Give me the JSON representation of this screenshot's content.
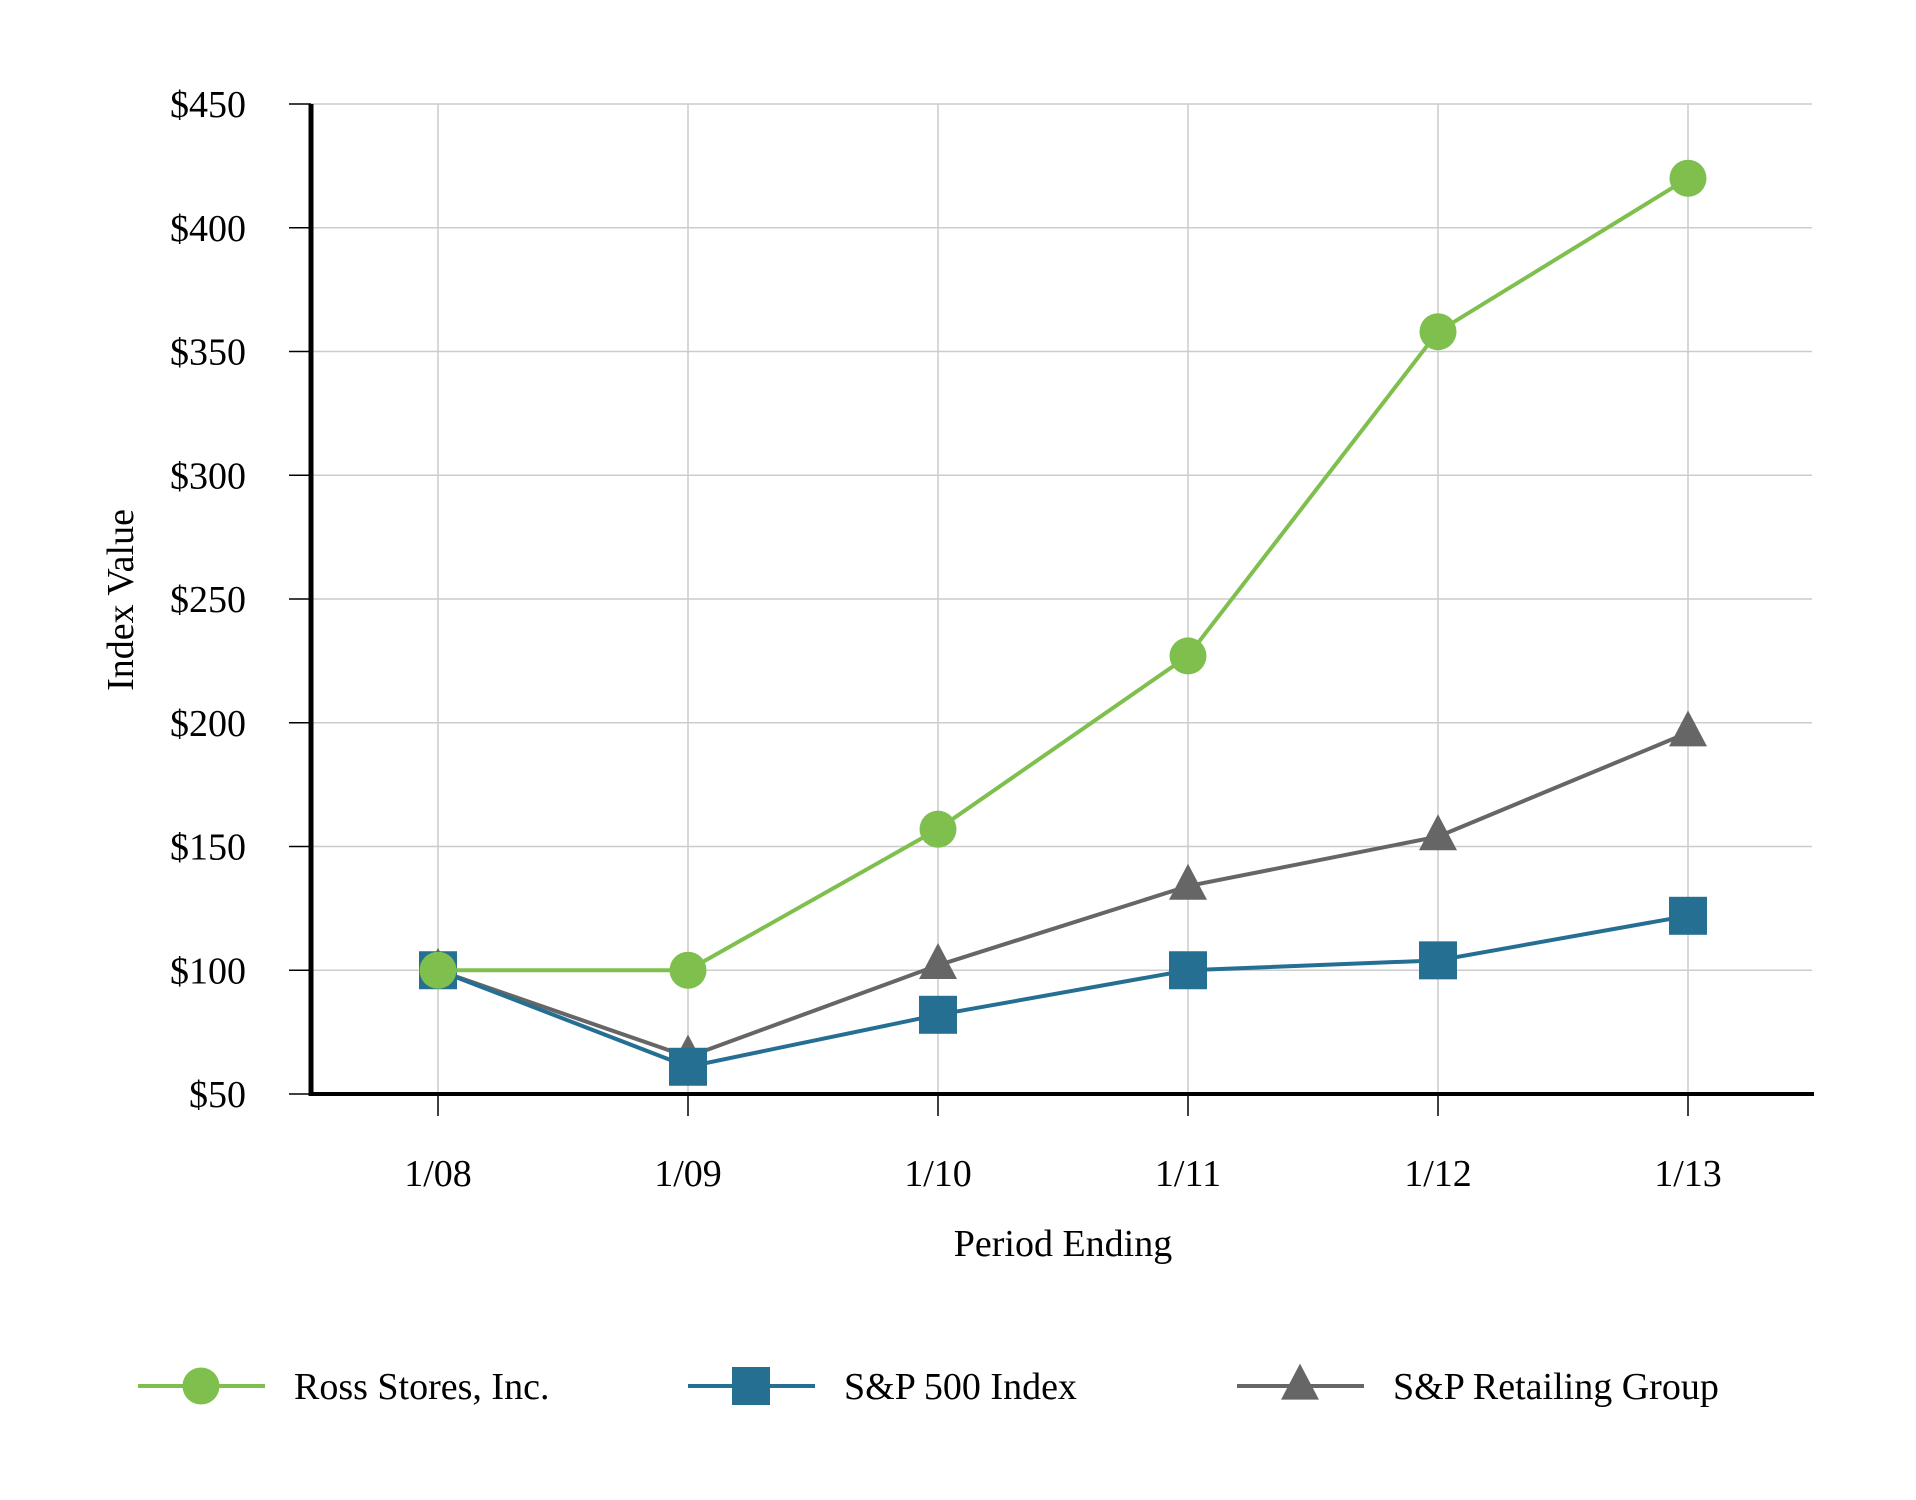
{
  "chart_data": {
    "type": "line",
    "title": "",
    "xlabel": "Period Ending",
    "ylabel": "Index Value",
    "categories": [
      "1/08",
      "1/09",
      "1/10",
      "1/11",
      "1/12",
      "1/13"
    ],
    "ylim": [
      50,
      450
    ],
    "yticks": [
      50,
      100,
      150,
      200,
      250,
      300,
      350,
      400,
      450
    ],
    "ytick_labels": [
      "$50",
      "$100",
      "$150",
      "$200",
      "$250",
      "$300",
      "$350",
      "$400",
      "$450"
    ],
    "grid": true,
    "legend_position": "bottom",
    "series": [
      {
        "name": "Ross Stores, Inc.",
        "marker": "circle",
        "color": "#7fbf4d",
        "values": [
          100,
          100,
          157,
          227,
          358,
          420
        ]
      },
      {
        "name": "S&P 500 Index",
        "marker": "square",
        "color": "#256f93",
        "values": [
          100,
          61,
          82,
          100,
          104,
          122
        ]
      },
      {
        "name": "S&P Retailing Group",
        "marker": "triangle",
        "color": "#666666",
        "values": [
          100,
          65,
          102,
          134,
          154,
          196
        ]
      }
    ]
  }
}
